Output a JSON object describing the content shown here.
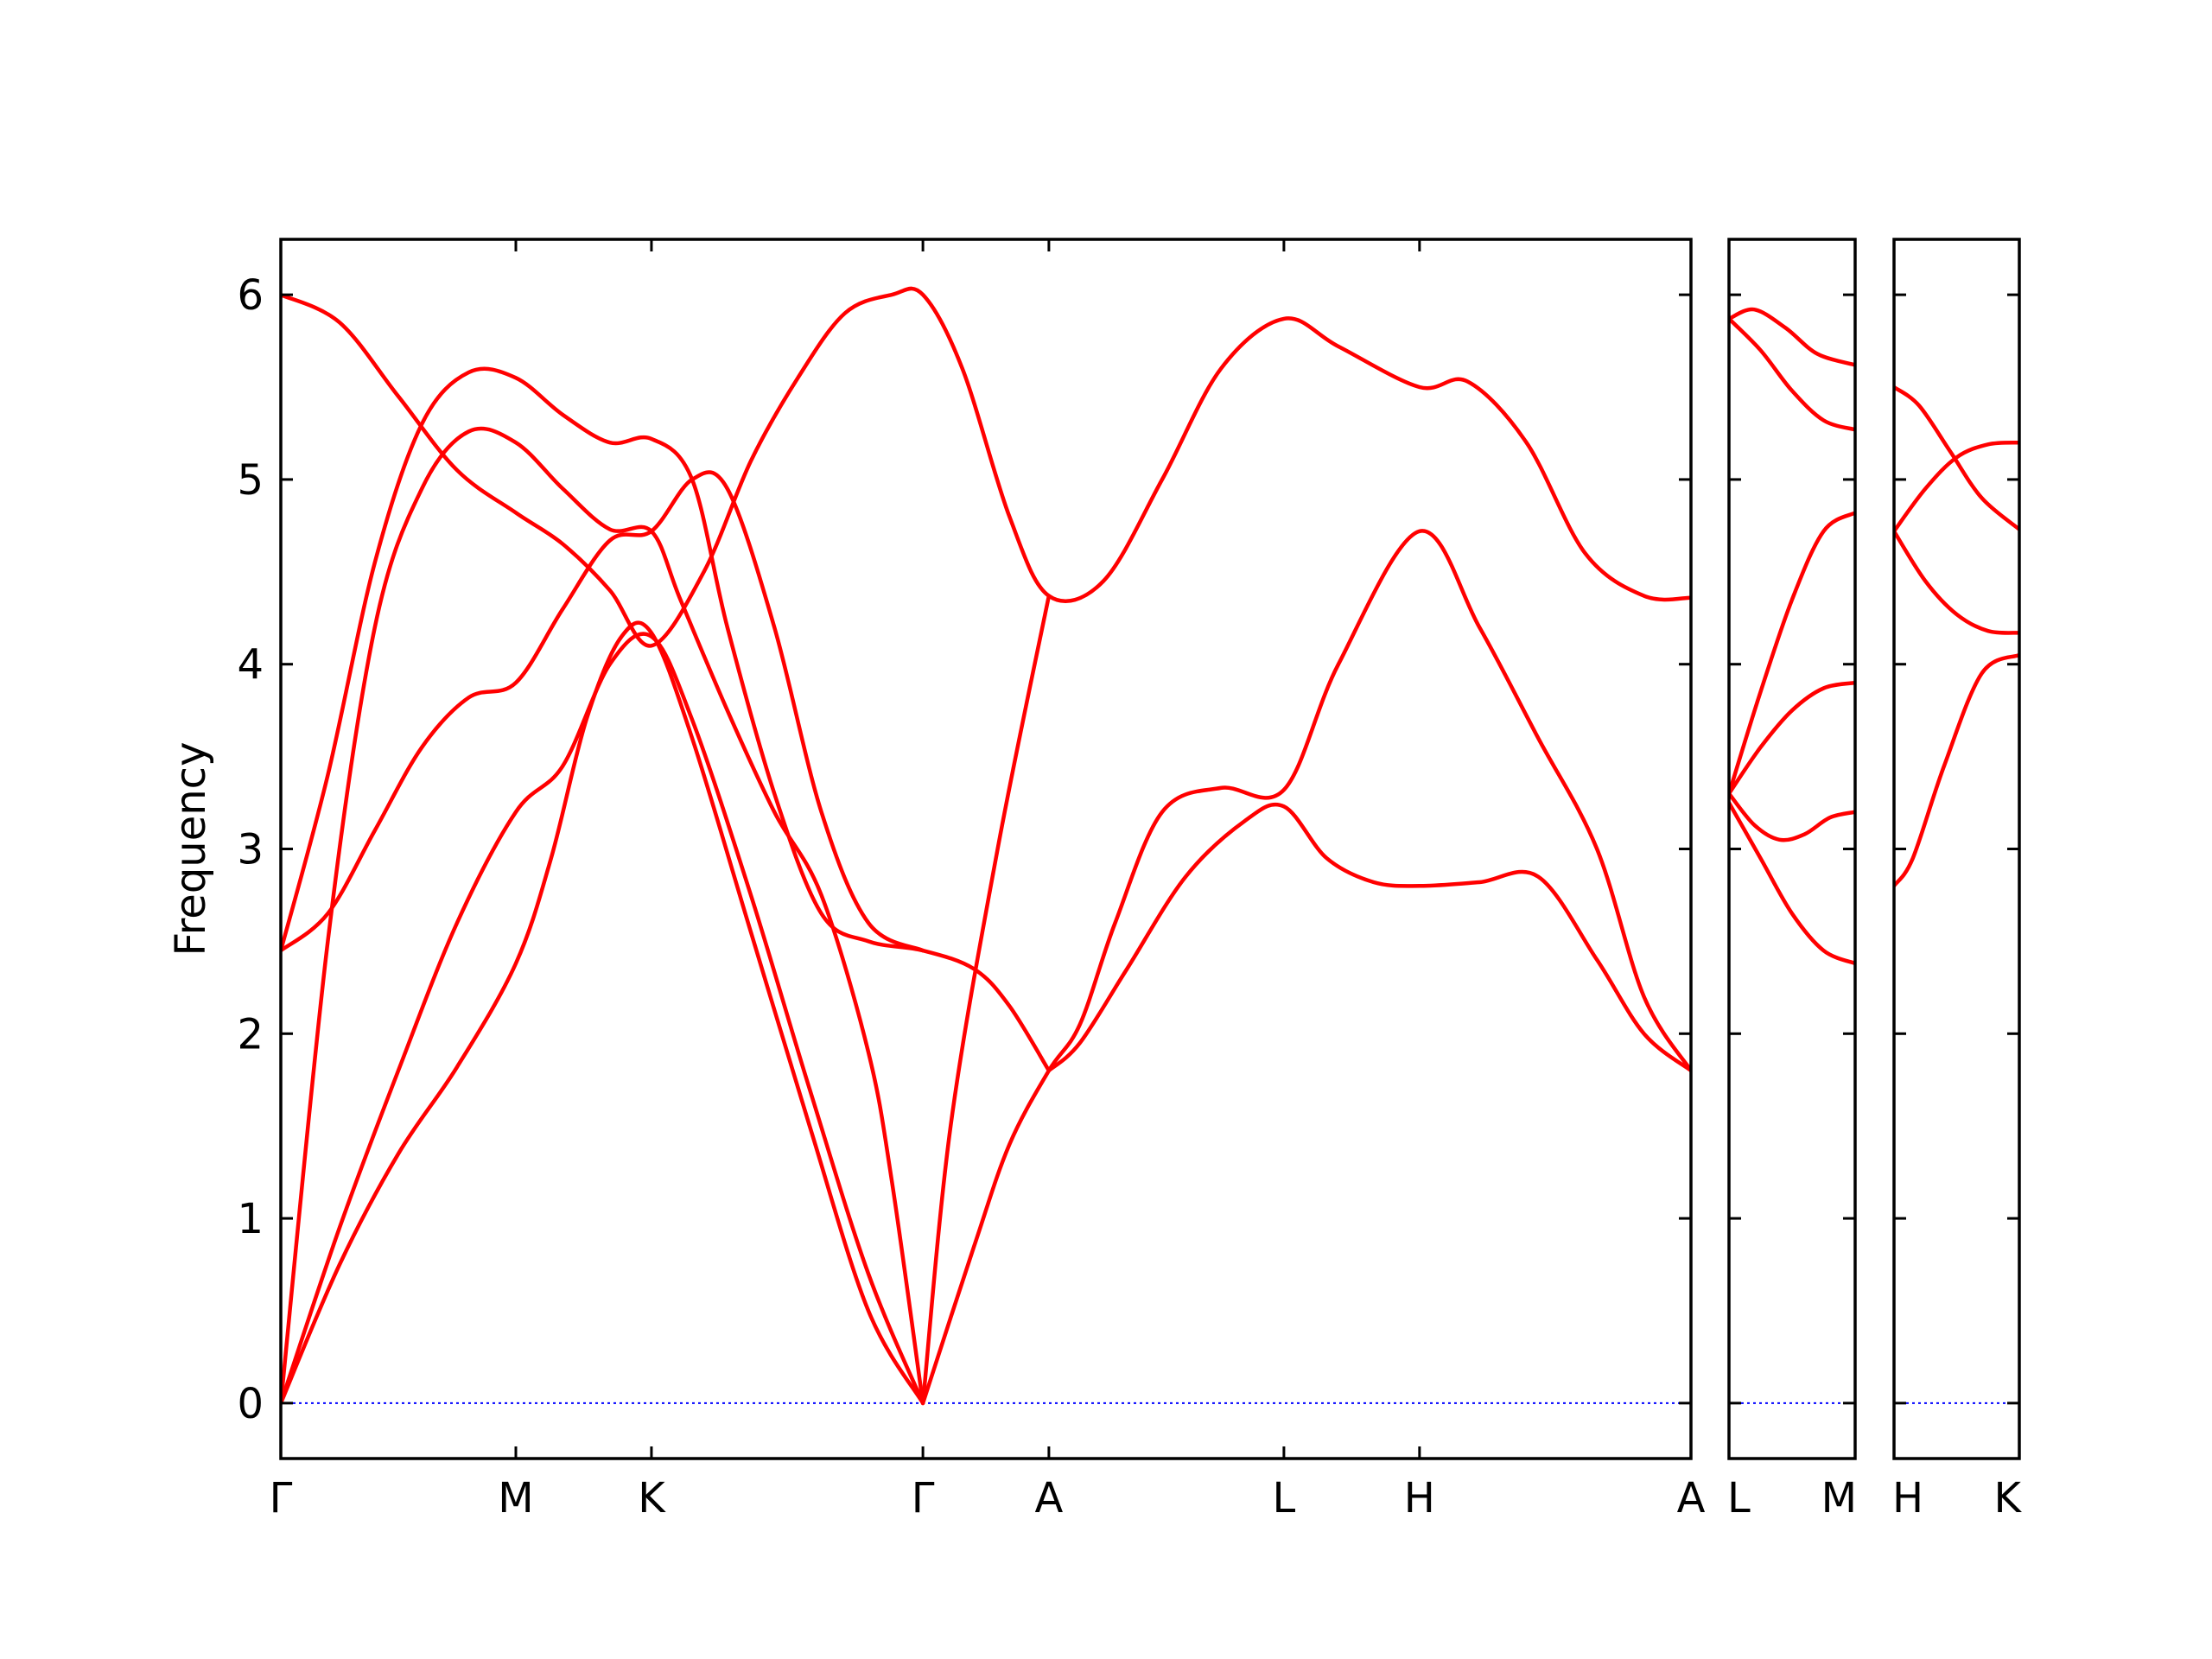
{
  "chart_data": {
    "type": "line",
    "ylabel": "Frequency",
    "xlabel": "",
    "ylim": [
      -0.3,
      6.3
    ],
    "yticks": [
      0,
      1,
      2,
      3,
      4,
      5,
      6
    ],
    "colors": {
      "band": "#ff0000",
      "zero_line": "#0000ff",
      "axes": "#000000"
    },
    "grid": false,
    "panels": [
      {
        "id": "main",
        "labels": [
          "Γ",
          "M",
          "K",
          "Γ",
          "A",
          "L",
          "H",
          "A"
        ],
        "label_positions": [
          0,
          1,
          1.577,
          2.732,
          3.268,
          4.268,
          4.845,
          6.0
        ],
        "xlim": [
          0,
          6.0
        ],
        "bands": [
          {
            "name": "",
            "points": [
              [
                0,
                0
              ],
              [
                0.25,
                0.75
              ],
              [
                0.5,
                1.35
              ],
              [
                0.75,
                1.82
              ],
              [
                1.0,
                2.38
              ],
              [
                1.15,
                2.95
              ],
              [
                1.3,
                3.7
              ],
              [
                1.45,
                4.15
              ],
              [
                1.577,
                4.17
              ],
              [
                1.75,
                3.6
              ],
              [
                2.0,
                2.55
              ],
              [
                2.25,
                1.5
              ],
              [
                2.5,
                0.5
              ],
              [
                2.732,
                0
              ]
            ]
          },
          {
            "name": "",
            "points": [
              [
                0,
                0
              ],
              [
                0.25,
                0.95
              ],
              [
                0.5,
                1.8
              ],
              [
                0.75,
                2.6
              ],
              [
                1.0,
                3.2
              ],
              [
                1.2,
                3.45
              ],
              [
                1.4,
                4.0
              ],
              [
                1.577,
                4.15
              ],
              [
                1.75,
                3.7
              ],
              [
                2.0,
                2.75
              ],
              [
                2.25,
                1.7
              ],
              [
                2.5,
                0.7
              ],
              [
                2.732,
                0
              ]
            ]
          },
          {
            "name": "",
            "points": [
              [
                0,
                0
              ],
              [
                0.2,
                2.5
              ],
              [
                0.4,
                4.2
              ],
              [
                0.6,
                4.95
              ],
              [
                0.8,
                5.26
              ],
              [
                1.0,
                5.2
              ],
              [
                1.2,
                4.95
              ],
              [
                1.4,
                4.73
              ],
              [
                1.577,
                4.72
              ],
              [
                1.7,
                4.35
              ],
              [
                1.9,
                3.75
              ],
              [
                2.1,
                3.2
              ],
              [
                2.3,
                2.75
              ],
              [
                2.5,
                1.9
              ],
              [
                2.6,
                1.2
              ],
              [
                2.732,
                0
              ]
            ]
          },
          {
            "name": "",
            "points": [
              [
                0,
                2.45
              ],
              [
                0.2,
                3.4
              ],
              [
                0.4,
                4.55
              ],
              [
                0.6,
                5.3
              ],
              [
                0.8,
                5.58
              ],
              [
                1.0,
                5.55
              ],
              [
                1.2,
                5.35
              ],
              [
                1.4,
                5.2
              ],
              [
                1.577,
                5.22
              ],
              [
                1.75,
                5.0
              ],
              [
                1.9,
                4.2
              ],
              [
                2.1,
                3.3
              ],
              [
                2.3,
                2.65
              ],
              [
                2.5,
                2.5
              ],
              [
                2.732,
                2.45
              ],
              [
                2.95,
                2.35
              ],
              [
                3.1,
                2.15
              ],
              [
                3.268,
                1.8
              ]
            ]
          },
          {
            "name": "",
            "points": [
              [
                0,
                2.45
              ],
              [
                0.2,
                2.65
              ],
              [
                0.4,
                3.1
              ],
              [
                0.6,
                3.55
              ],
              [
                0.8,
                3.82
              ],
              [
                1.0,
                3.9
              ],
              [
                1.2,
                4.3
              ],
              [
                1.4,
                4.67
              ],
              [
                1.577,
                4.72
              ],
              [
                1.75,
                5.0
              ],
              [
                1.9,
                4.95
              ],
              [
                2.1,
                4.2
              ],
              [
                2.3,
                3.2
              ],
              [
                2.5,
                2.6
              ],
              [
                2.732,
                2.45
              ]
            ]
          },
          {
            "name": "",
            "points": [
              [
                0,
                6.0
              ],
              [
                0.25,
                5.85
              ],
              [
                0.5,
                5.45
              ],
              [
                0.75,
                5.05
              ],
              [
                1.0,
                4.82
              ],
              [
                1.2,
                4.65
              ],
              [
                1.4,
                4.4
              ],
              [
                1.577,
                4.1
              ],
              [
                1.8,
                4.5
              ],
              [
                2.0,
                5.1
              ],
              [
                2.2,
                5.55
              ],
              [
                2.4,
                5.9
              ],
              [
                2.6,
                6.0
              ],
              [
                2.732,
                6.0
              ],
              [
                2.9,
                5.6
              ],
              [
                3.1,
                4.8
              ],
              [
                3.268,
                4.37
              ],
              [
                3.5,
                4.45
              ],
              [
                3.75,
                5.0
              ],
              [
                4.0,
                5.6
              ],
              [
                4.268,
                5.87
              ],
              [
                4.5,
                5.72
              ],
              [
                4.845,
                5.5
              ],
              [
                5.05,
                5.53
              ],
              [
                5.3,
                5.2
              ],
              [
                5.55,
                4.6
              ],
              [
                5.8,
                4.37
              ],
              [
                6.0,
                4.36
              ]
            ]
          },
          {
            "name": "",
            "points": [
              [
                2.732,
                0
              ],
              [
                2.95,
                0.85
              ],
              [
                3.1,
                1.4
              ],
              [
                3.268,
                1.8
              ],
              [
                3.4,
                2.05
              ],
              [
                3.55,
                2.6
              ],
              [
                3.75,
                3.2
              ],
              [
                4.0,
                3.33
              ],
              [
                4.268,
                3.32
              ],
              [
                4.5,
                4.0
              ],
              [
                4.845,
                4.72
              ],
              [
                5.1,
                4.2
              ],
              [
                5.35,
                3.6
              ],
              [
                5.6,
                3.0
              ],
              [
                5.8,
                2.2
              ],
              [
                6.0,
                1.8
              ]
            ]
          },
          {
            "name": "",
            "points": [
              [
                2.732,
                0
              ],
              [
                2.85,
                1.5
              ],
              [
                3.05,
                3.0
              ],
              [
                3.268,
                4.37
              ]
            ]
          },
          {
            "name": "",
            "points": [
              [
                3.268,
                1.8
              ],
              [
                3.4,
                1.95
              ],
              [
                3.6,
                2.35
              ],
              [
                3.85,
                2.85
              ],
              [
                4.1,
                3.15
              ],
              [
                4.268,
                3.23
              ],
              [
                4.45,
                2.95
              ],
              [
                4.65,
                2.82
              ],
              [
                4.845,
                2.8
              ],
              [
                5.1,
                2.82
              ],
              [
                5.35,
                2.85
              ],
              [
                5.6,
                2.4
              ],
              [
                5.8,
                2.0
              ],
              [
                6.0,
                1.8
              ]
            ]
          }
        ]
      },
      {
        "id": "panel-LM",
        "labels": [
          "L",
          "M"
        ],
        "label_positions": [
          0,
          1
        ],
        "xlim": [
          0,
          1
        ],
        "bands": [
          {
            "name": "",
            "points": [
              [
                0,
                5.87
              ],
              [
                0.2,
                5.92
              ],
              [
                0.45,
                5.82
              ],
              [
                0.7,
                5.68
              ],
              [
                1.0,
                5.62
              ]
            ]
          },
          {
            "name": "",
            "points": [
              [
                0,
                5.87
              ],
              [
                0.25,
                5.7
              ],
              [
                0.5,
                5.48
              ],
              [
                0.75,
                5.32
              ],
              [
                1.0,
                5.27
              ]
            ]
          },
          {
            "name": "",
            "points": [
              [
                0,
                3.3
              ],
              [
                0.25,
                3.85
              ],
              [
                0.5,
                4.35
              ],
              [
                0.75,
                4.72
              ],
              [
                1.0,
                4.82
              ]
            ]
          },
          {
            "name": "",
            "points": [
              [
                0,
                3.3
              ],
              [
                0.25,
                3.55
              ],
              [
                0.5,
                3.75
              ],
              [
                0.75,
                3.87
              ],
              [
                1.0,
                3.9
              ]
            ]
          },
          {
            "name": "",
            "points": [
              [
                0,
                3.3
              ],
              [
                0.2,
                3.13
              ],
              [
                0.4,
                3.05
              ],
              [
                0.6,
                3.08
              ],
              [
                0.8,
                3.17
              ],
              [
                1.0,
                3.2
              ]
            ]
          },
          {
            "name": "",
            "points": [
              [
                0,
                3.25
              ],
              [
                0.25,
                2.95
              ],
              [
                0.5,
                2.65
              ],
              [
                0.75,
                2.45
              ],
              [
                1.0,
                2.38
              ]
            ]
          }
        ]
      },
      {
        "id": "panel-HK",
        "labels": [
          "H",
          "K"
        ],
        "label_positions": [
          0,
          1
        ],
        "xlim": [
          0,
          1
        ],
        "bands": [
          {
            "name": "",
            "points": [
              [
                0,
                5.5
              ],
              [
                0.2,
                5.4
              ],
              [
                0.45,
                5.15
              ],
              [
                0.7,
                4.9
              ],
              [
                1.0,
                4.73
              ]
            ]
          },
          {
            "name": "",
            "points": [
              [
                0,
                4.72
              ],
              [
                0.25,
                4.95
              ],
              [
                0.5,
                5.12
              ],
              [
                0.75,
                5.19
              ],
              [
                1.0,
                5.2
              ]
            ]
          },
          {
            "name": "",
            "points": [
              [
                0,
                4.72
              ],
              [
                0.25,
                4.45
              ],
              [
                0.5,
                4.27
              ],
              [
                0.75,
                4.18
              ],
              [
                1.0,
                4.17
              ]
            ]
          },
          {
            "name": "",
            "points": [
              [
                0,
                2.8
              ],
              [
                0.15,
                2.95
              ],
              [
                0.4,
                3.45
              ],
              [
                0.7,
                3.95
              ],
              [
                1.0,
                4.05
              ]
            ]
          }
        ]
      }
    ]
  }
}
